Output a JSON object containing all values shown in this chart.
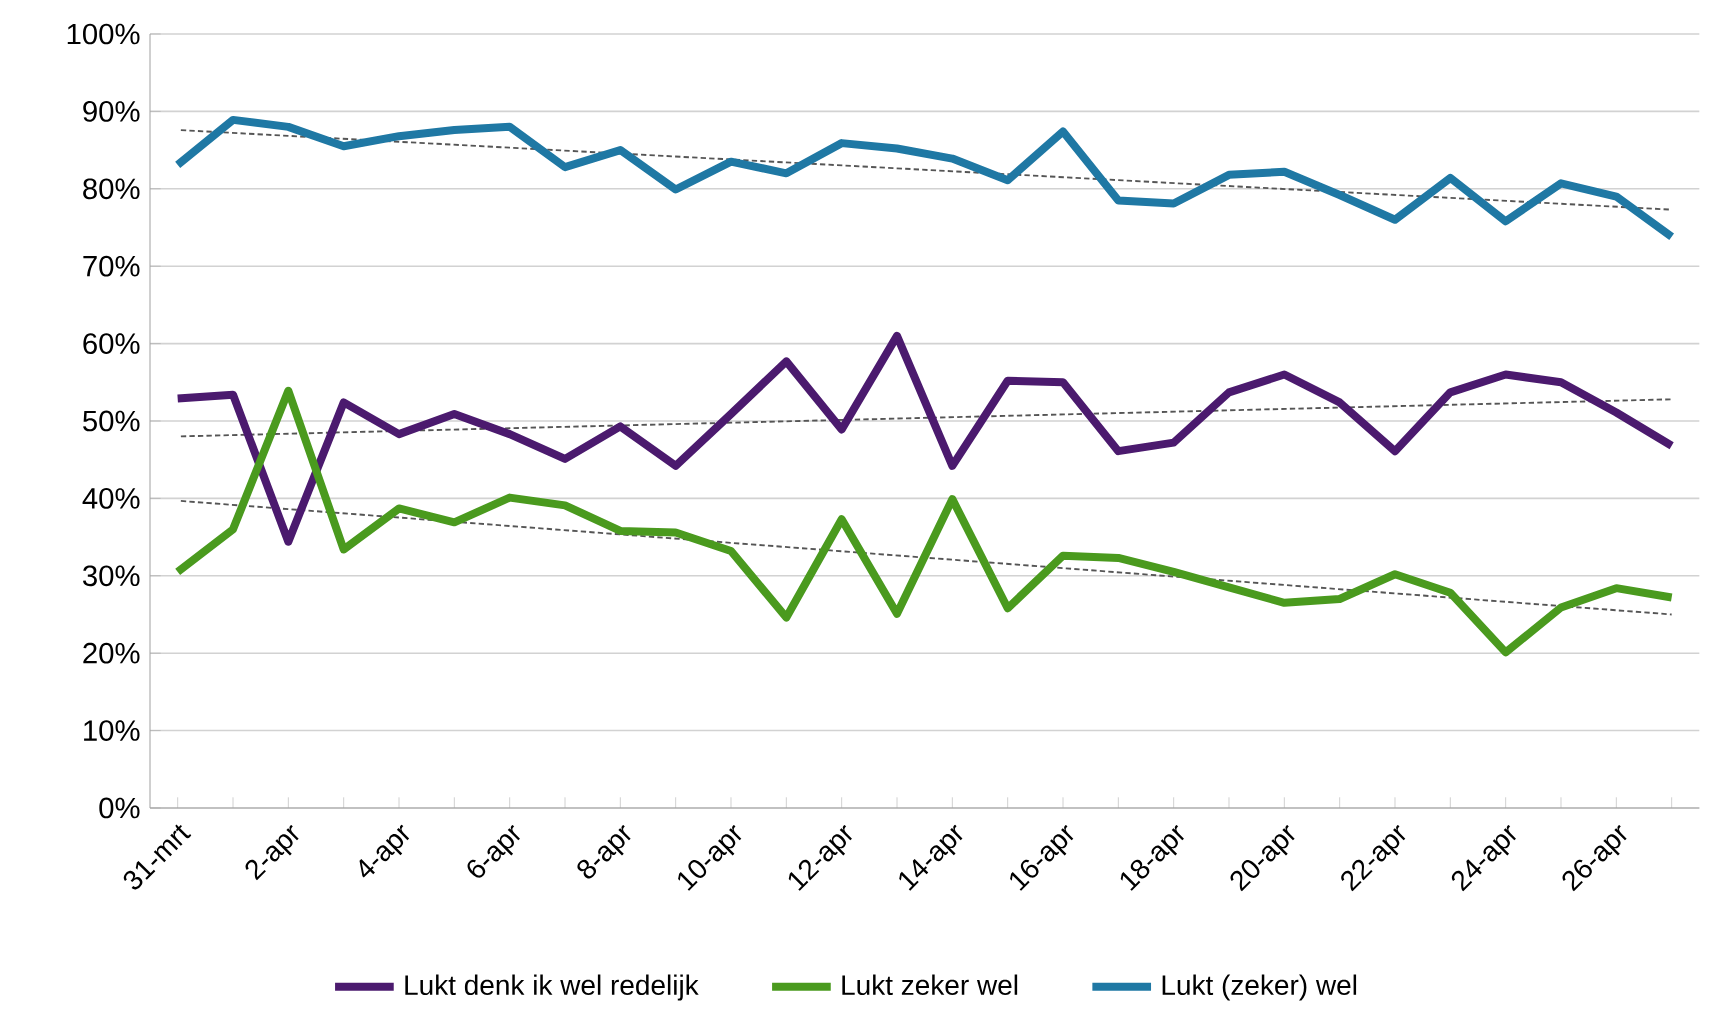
{
  "chart_data": {
    "type": "line",
    "categories": [
      "31-mrt",
      null,
      "2-apr",
      null,
      "4-apr",
      null,
      "6-apr",
      null,
      "8-apr",
      null,
      "10-apr",
      null,
      "12-apr",
      null,
      "14-apr",
      null,
      "16-apr",
      null,
      "18-apr",
      null,
      "20-apr",
      null,
      "22-apr",
      null,
      "24-apr",
      null,
      "26-apr",
      null
    ],
    "series": [
      {
        "name": "Lukt denk ik wel redelijk",
        "color": "#4b1a6e",
        "values": [
          52.9,
          53.4,
          34.4,
          52.4,
          48.3,
          50.9,
          48.3,
          45.1,
          49.3,
          44.2,
          50.9,
          57.7,
          48.9,
          61.0,
          44.2,
          55.2,
          55.0,
          46.1,
          47.2,
          53.7,
          56.0,
          52.4,
          46.1,
          53.7,
          56.0,
          55.0,
          51.1,
          46.8
        ]
      },
      {
        "name": "Lukt zeker wel",
        "color": "#4a9a1e",
        "values": [
          30.5,
          36.0,
          53.9,
          33.4,
          38.7,
          36.9,
          40.1,
          39.1,
          35.8,
          35.6,
          33.2,
          24.6,
          37.3,
          25.1,
          39.9,
          25.8,
          32.6,
          32.3,
          30.5,
          28.5,
          26.5,
          27.0,
          30.2,
          27.8,
          20.1,
          25.9,
          28.4,
          27.2
        ]
      },
      {
        "name": "Lukt (zeker) wel",
        "color": "#1f78a4",
        "values": [
          83.1,
          88.9,
          88.0,
          85.5,
          86.8,
          87.6,
          88.0,
          82.8,
          85.0,
          79.9,
          83.5,
          82.0,
          85.9,
          85.2,
          83.9,
          81.1,
          87.4,
          78.5,
          78.1,
          81.8,
          82.2,
          79.2,
          76.0,
          81.4,
          75.8,
          80.7,
          79.0,
          73.8
        ]
      },
      {
        "color": "#555555",
        "line_style": "dashed",
        "values": [
          48.0,
          null,
          null,
          null,
          null,
          null,
          null,
          null,
          null,
          null,
          null,
          null,
          null,
          null,
          null,
          null,
          null,
          null,
          null,
          null,
          null,
          null,
          null,
          null,
          null,
          null,
          null,
          52.8
        ]
      },
      {
        "color": "#555555",
        "line_style": "dashed",
        "values": [
          39.7,
          null,
          null,
          null,
          null,
          null,
          null,
          null,
          null,
          null,
          null,
          null,
          null,
          null,
          null,
          null,
          null,
          null,
          null,
          null,
          null,
          null,
          null,
          null,
          null,
          null,
          null,
          25.0
        ]
      },
      {
        "color": "#555555",
        "line_style": "dashed",
        "values": [
          87.6,
          null,
          null,
          null,
          null,
          null,
          null,
          null,
          null,
          null,
          null,
          null,
          null,
          null,
          null,
          null,
          null,
          null,
          null,
          null,
          null,
          null,
          null,
          null,
          null,
          null,
          null,
          77.3
        ]
      }
    ],
    "ylim": [
      0,
      100
    ],
    "yticks": [
      {
        "value": 0,
        "label": "0%"
      },
      {
        "value": 10,
        "label": "10%"
      },
      {
        "value": 20,
        "label": "20%"
      },
      {
        "value": 30,
        "label": "30%"
      },
      {
        "value": 40,
        "label": "40%"
      },
      {
        "value": 50,
        "label": "50%"
      },
      {
        "value": 60,
        "label": "60%"
      },
      {
        "value": 70,
        "label": "70%"
      },
      {
        "value": 80,
        "label": "80%"
      },
      {
        "value": 90,
        "label": "90%"
      },
      {
        "value": 100,
        "label": "100%"
      }
    ],
    "grid": "y",
    "legend": "bottom",
    "marker": "none"
  }
}
